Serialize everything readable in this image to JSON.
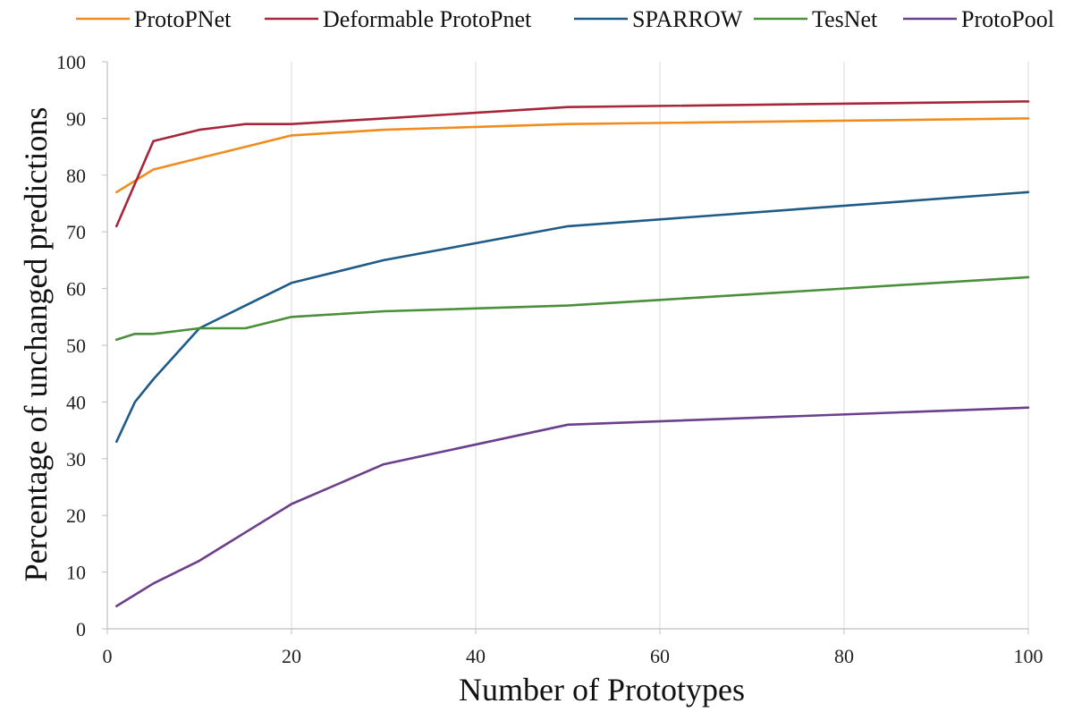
{
  "chart_data": {
    "type": "line",
    "title": "",
    "xlabel": "Number of Prototypes",
    "ylabel": "Percentage of unchanged predictions",
    "xlim": [
      0,
      100
    ],
    "ylim": [
      0,
      100
    ],
    "xticks": [
      0,
      20,
      40,
      60,
      80,
      100
    ],
    "yticks": [
      0,
      10,
      20,
      30,
      40,
      50,
      60,
      70,
      80,
      90,
      100
    ],
    "grid": "vertical",
    "legend_position": "top",
    "series": [
      {
        "name": "ProtoPNet",
        "color": "#f08c1e",
        "x": [
          1,
          5,
          10,
          15,
          20,
          30,
          50,
          100
        ],
        "y": [
          77,
          81,
          83,
          85,
          87,
          88,
          89,
          90
        ]
      },
      {
        "name": "Deformable ProtoPnet",
        "color": "#a6273c",
        "x": [
          1,
          5,
          10,
          15,
          20,
          30,
          40,
          50,
          100
        ],
        "y": [
          71,
          86,
          88,
          89,
          89,
          90,
          91,
          92,
          93
        ]
      },
      {
        "name": "SPARROW",
        "color": "#1f5b87",
        "x": [
          1,
          3,
          5,
          10,
          15,
          20,
          30,
          50,
          100
        ],
        "y": [
          33,
          40,
          44,
          53,
          57,
          61,
          65,
          71,
          77
        ]
      },
      {
        "name": "TesNet",
        "color": "#4a8f3a",
        "x": [
          1,
          3,
          5,
          10,
          15,
          20,
          30,
          50,
          60,
          100
        ],
        "y": [
          51,
          52,
          52,
          53,
          53,
          55,
          56,
          57,
          58,
          62
        ]
      },
      {
        "name": "ProtoPool",
        "color": "#6b3f8c",
        "x": [
          1,
          3,
          5,
          10,
          15,
          20,
          30,
          50,
          100
        ],
        "y": [
          4,
          6,
          8,
          12,
          17,
          22,
          29,
          36,
          39
        ]
      }
    ]
  }
}
